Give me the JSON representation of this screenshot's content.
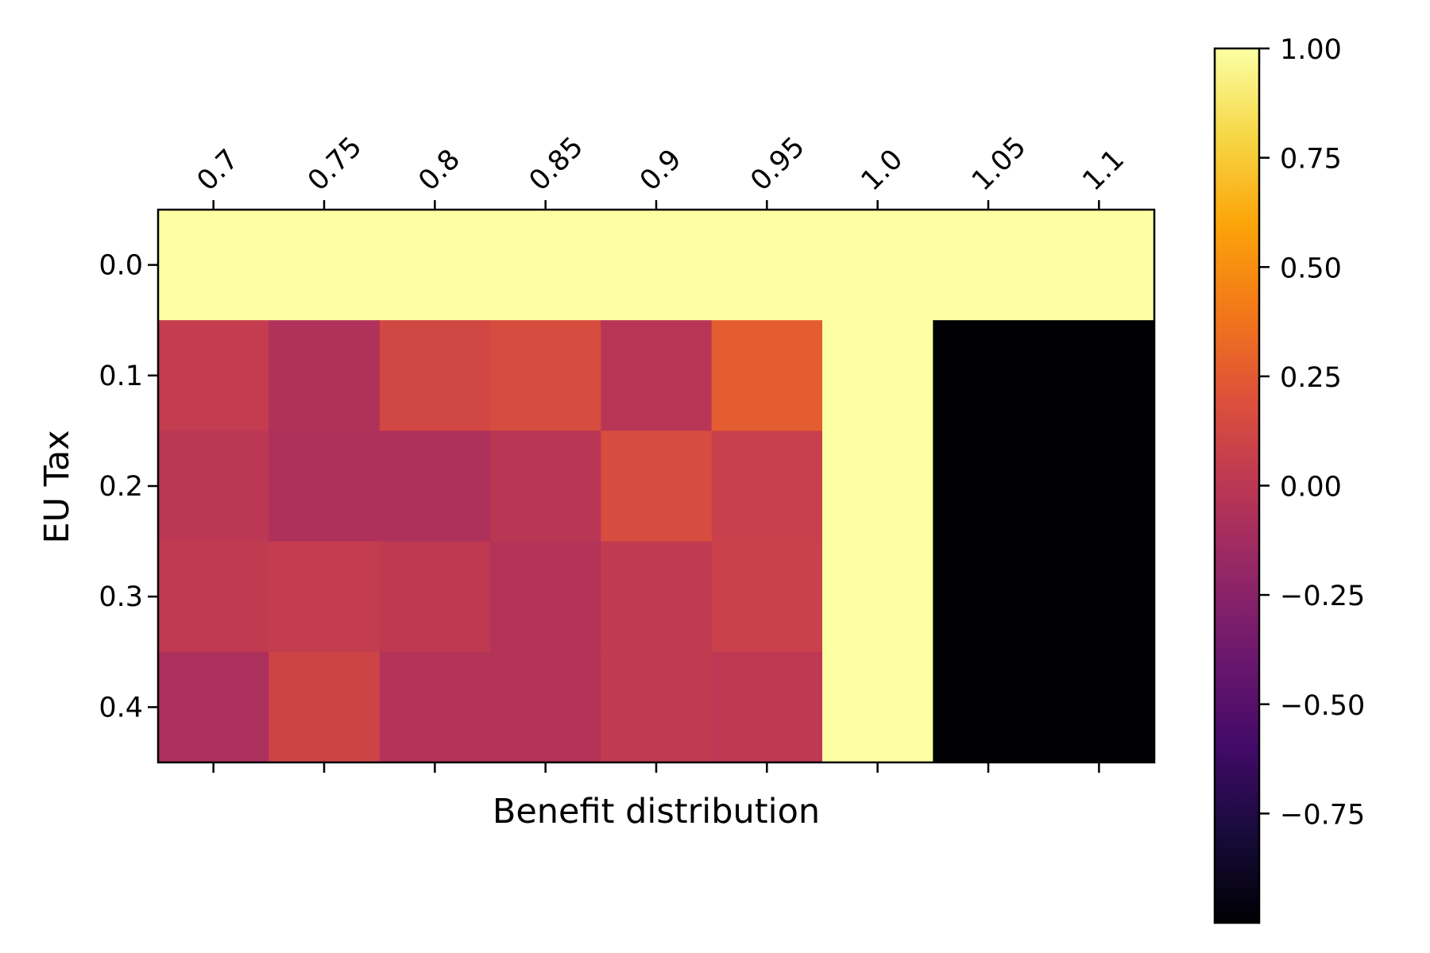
{
  "chart_data": {
    "type": "heatmap",
    "title": "",
    "xlabel": "Benefit distribution",
    "ylabel": "EU Tax",
    "x_categories": [
      "0.7",
      "0.75",
      "0.8",
      "0.85",
      "0.9",
      "0.95",
      "1.0",
      "1.05",
      "1.1"
    ],
    "y_categories": [
      "0.0",
      "0.1",
      "0.2",
      "0.3",
      "0.4"
    ],
    "values": [
      [
        1.0,
        1.0,
        1.0,
        1.0,
        1.0,
        1.0,
        1.0,
        1.0,
        1.0
      ],
      [
        0.04,
        -0.06,
        0.12,
        0.16,
        -0.02,
        0.26,
        1.0,
        -1.0,
        -1.0
      ],
      [
        0.0,
        -0.07,
        -0.07,
        -0.01,
        0.16,
        0.07,
        1.0,
        -1.0,
        -1.0
      ],
      [
        0.03,
        0.04,
        0.02,
        -0.04,
        0.03,
        0.08,
        1.0,
        -1.0,
        -1.0
      ],
      [
        -0.08,
        0.1,
        -0.04,
        -0.04,
        0.03,
        0.01,
        1.0,
        -1.0,
        -1.0
      ]
    ],
    "colormap": "inferno",
    "vmin": -1.0,
    "vmax": 1.0,
    "colorbar_ticks": [
      "1.00",
      "0.75",
      "0.50",
      "0.25",
      "0.00",
      "−0.25",
      "−0.50",
      "−0.75"
    ],
    "colorbar_tick_values": [
      1.0,
      0.75,
      0.5,
      0.25,
      0.0,
      -0.25,
      -0.5,
      -0.75
    ],
    "grid": false,
    "x_tick_position": "top",
    "x_tick_rotation": -45
  }
}
